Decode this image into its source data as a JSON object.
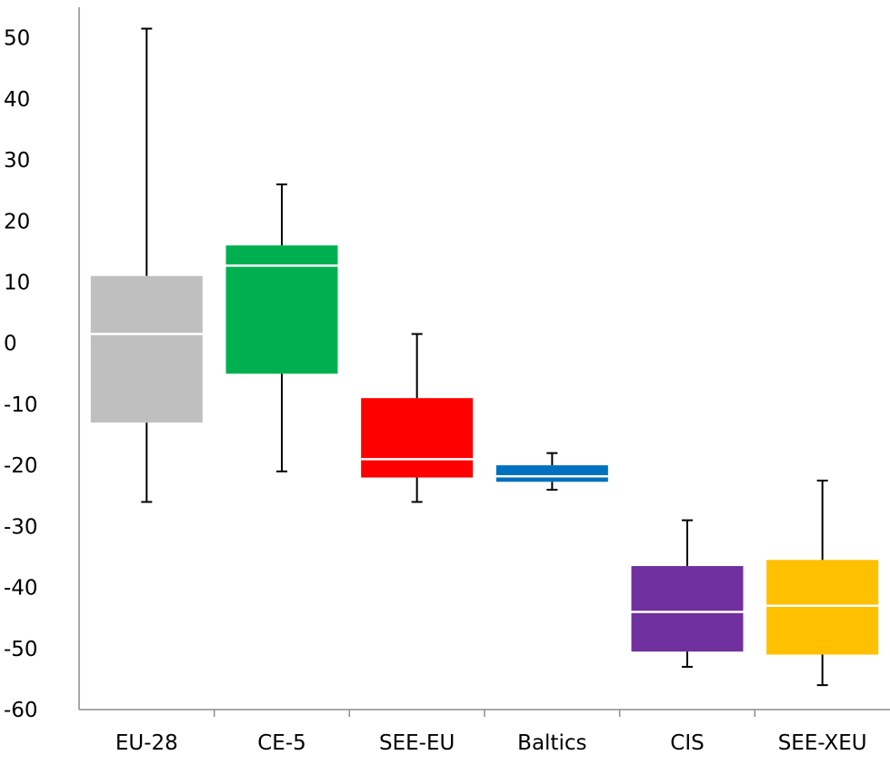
{
  "chart_data": {
    "type": "boxplot",
    "title": "",
    "xlabel": "",
    "ylabel": "",
    "ylim": [
      -60,
      55
    ],
    "yticks": [
      50,
      40,
      30,
      20,
      10,
      0,
      -10,
      -20,
      -30,
      -40,
      -50,
      -60
    ],
    "grid": false,
    "legend": "none",
    "categories": [
      "EU-28",
      "CE-5",
      "SEE-EU",
      "Baltics",
      "CIS",
      "SEE-XEU"
    ],
    "boxes": [
      {
        "category": "EU-28",
        "min": -26,
        "q1": -13,
        "median": 1.5,
        "q3": 11,
        "max": 51.5,
        "color": "#BFBFBF"
      },
      {
        "category": "CE-5",
        "min": -21,
        "q1": -5,
        "median": 12.7,
        "q3": 16,
        "max": 26,
        "color": "#00B050"
      },
      {
        "category": "SEE-EU",
        "min": -26,
        "q1": -22,
        "median": -19,
        "q3": -9,
        "max": 1.5,
        "color": "#FF0000"
      },
      {
        "category": "Baltics",
        "min": -24,
        "q1": -22.7,
        "median": -21.8,
        "q3": -20,
        "max": -18,
        "color": "#0070C0"
      },
      {
        "category": "CIS",
        "min": -53,
        "q1": -50.5,
        "median": -44,
        "q3": -36.5,
        "max": -29,
        "color": "#7030A0"
      },
      {
        "category": "SEE-XEU",
        "min": -56,
        "q1": -51,
        "median": -43,
        "q3": -35.5,
        "max": -22.5,
        "color": "#FFC000"
      }
    ]
  }
}
